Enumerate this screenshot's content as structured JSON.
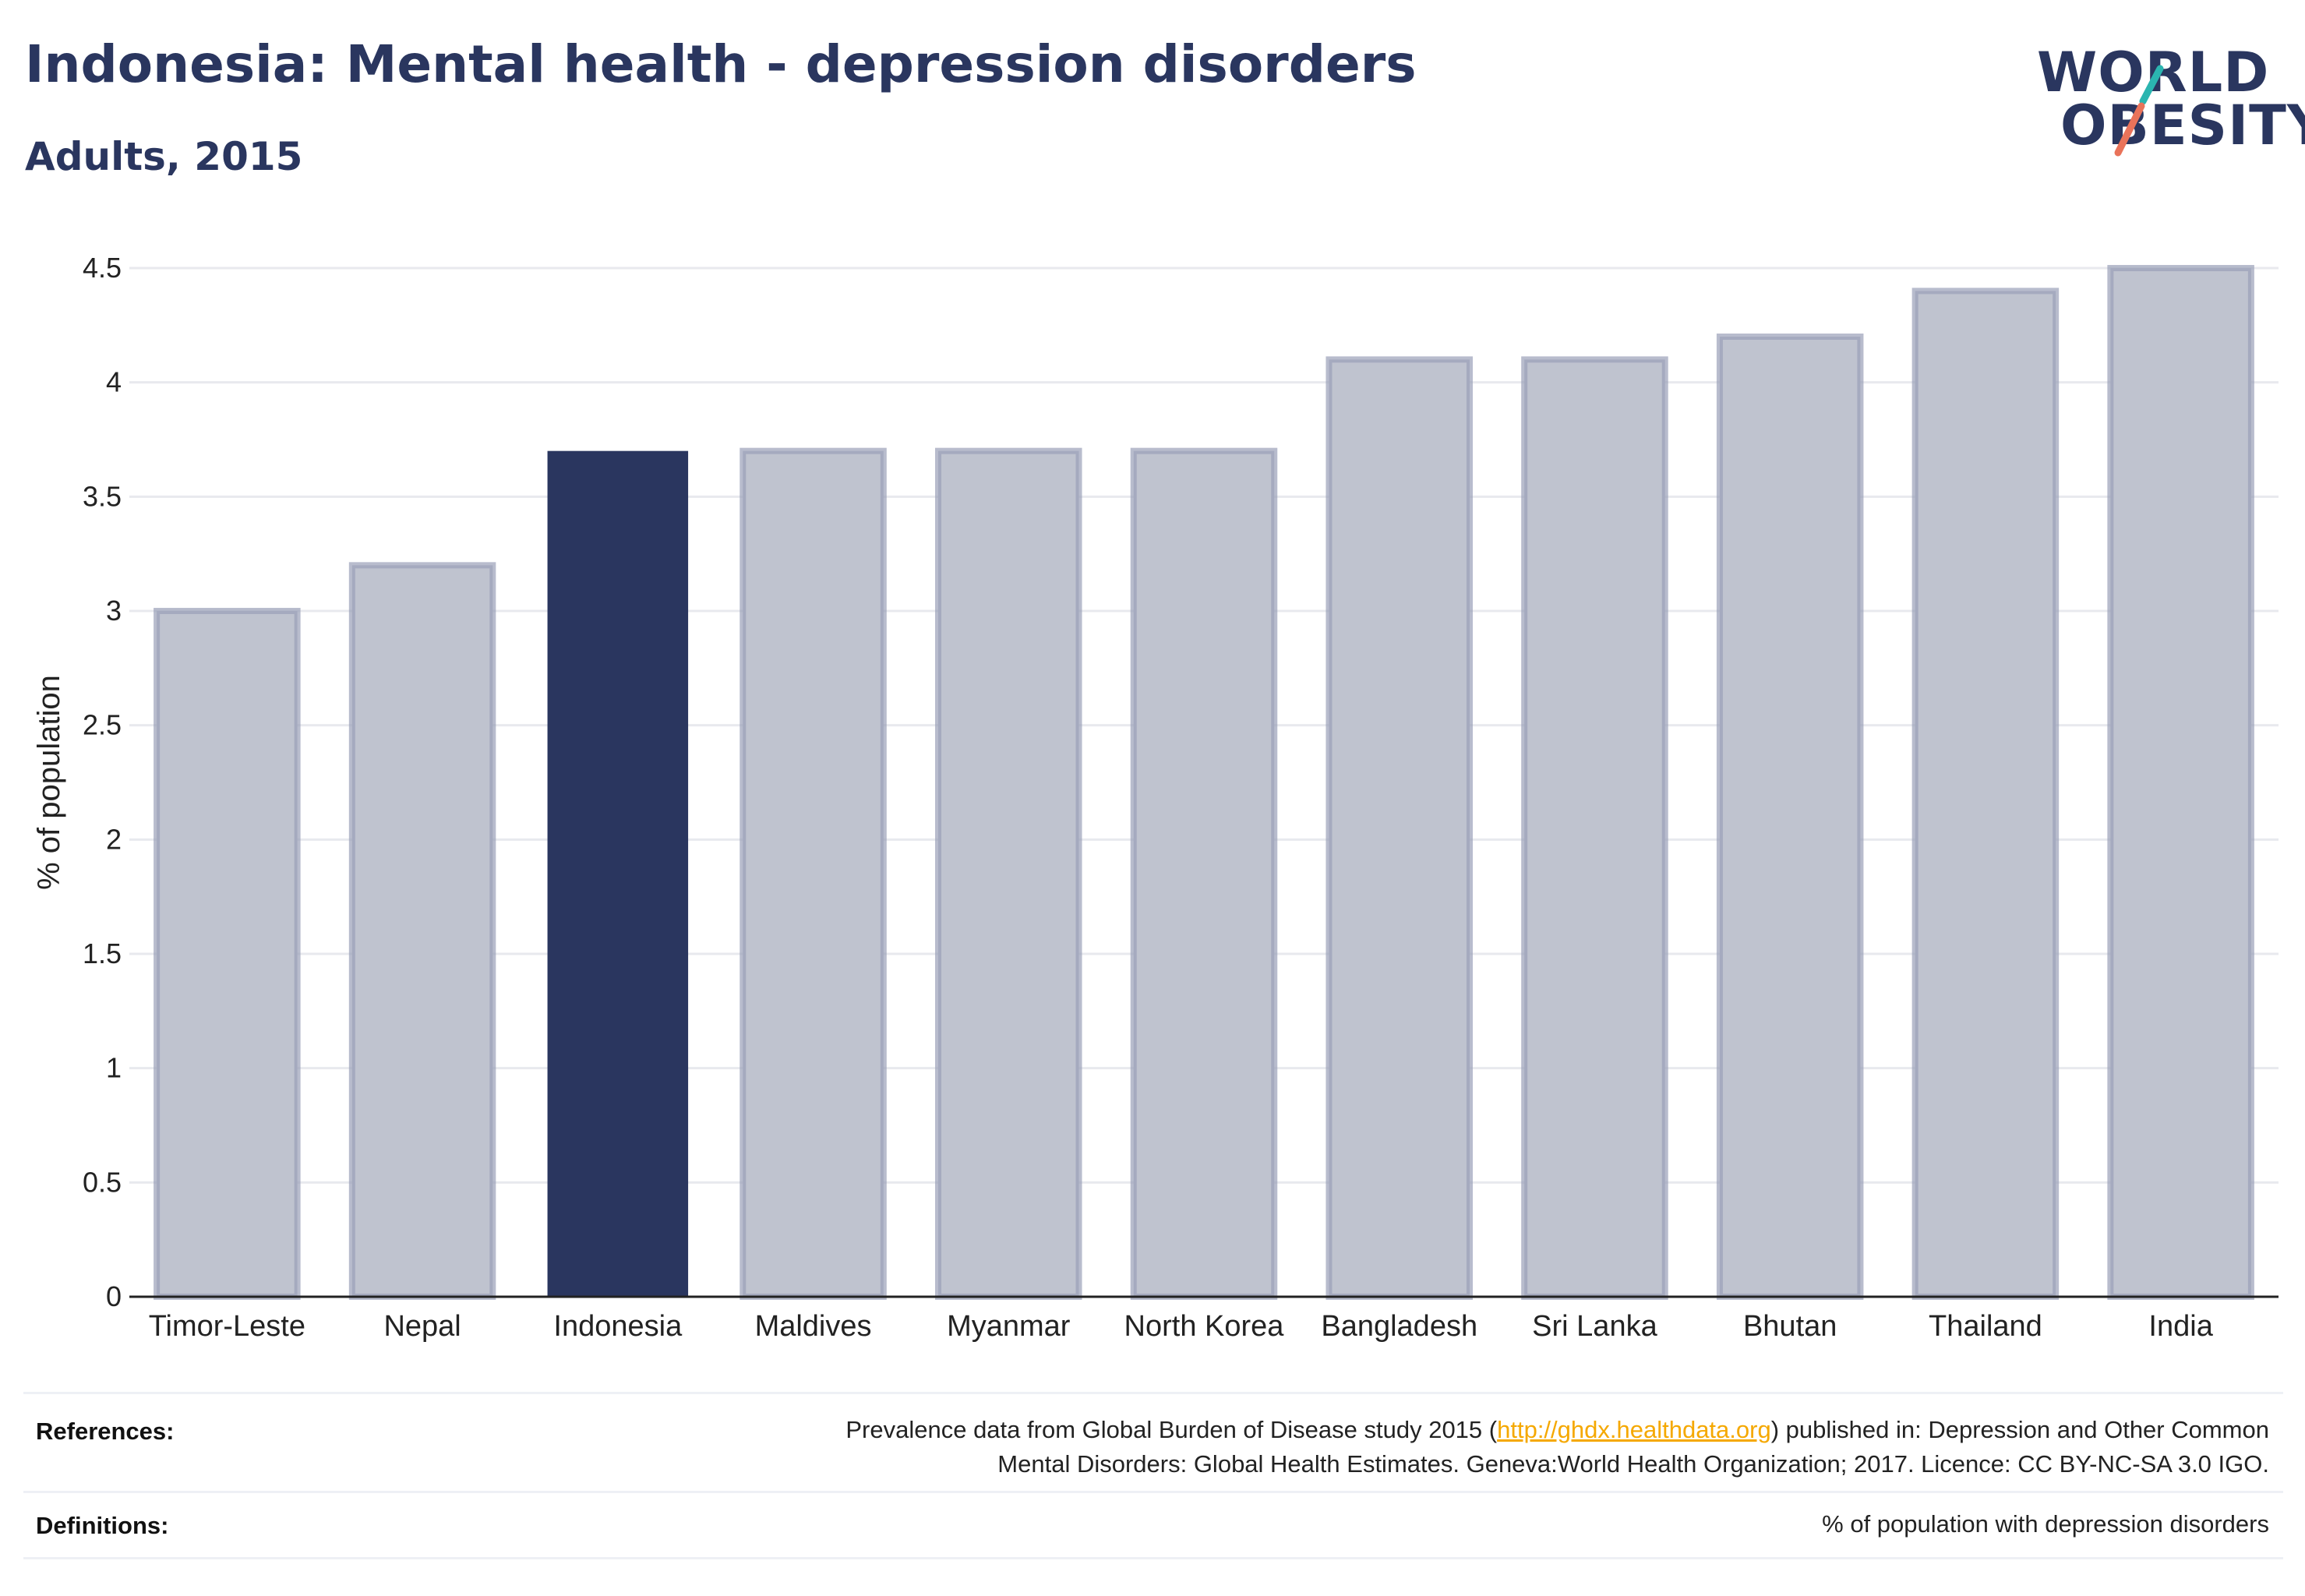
{
  "header": {
    "title": "Indonesia: Mental health - depression disorders",
    "subtitle": "Adults, 2015"
  },
  "logo": {
    "line1": "WORLD",
    "line2": "OBESITY",
    "slash_colors": [
      "#2bb5b0",
      "#e9735a"
    ]
  },
  "chart_data": {
    "type": "bar",
    "title": "Indonesia: Mental health - depression disorders",
    "subtitle": "Adults, 2015",
    "xlabel": "",
    "ylabel": "% of population",
    "ylim": [
      0,
      4.5
    ],
    "yticks": [
      "0",
      "0.5",
      "1",
      "1.5",
      "2",
      "2.5",
      "3",
      "3.5",
      "4",
      "4.5"
    ],
    "categories": [
      "Timor-Leste",
      "Nepal",
      "Indonesia",
      "Maldives",
      "Myanmar",
      "North Korea",
      "Bangladesh",
      "Sri Lanka",
      "Bhutan",
      "Thailand",
      "India"
    ],
    "values": [
      3.0,
      3.2,
      3.7,
      3.7,
      3.7,
      3.7,
      4.1,
      4.1,
      4.2,
      4.4,
      4.5
    ],
    "highlight": "Indonesia",
    "grid": true,
    "colors": {
      "highlight": "#2a365f",
      "other_fill": "#bfc3cf",
      "other_border": "#9aa0b8",
      "grid": "#e8e9ee",
      "axis": "#222222"
    }
  },
  "footer": {
    "references_label": "References:",
    "references_line1_pre": "Prevalence data from Global Burden of Disease study 2015 (",
    "references_link": "http://ghdx.healthdata.org",
    "references_line1_post": ") published in: Depression and Other Common",
    "references_line2": "Mental Disorders: Global Health Estimates. Geneva:World Health Organization; 2017. Licence: CC BY-NC-SA 3.0 IGO.",
    "definitions_label": "Definitions:",
    "definitions_text": "% of population with depression disorders"
  }
}
